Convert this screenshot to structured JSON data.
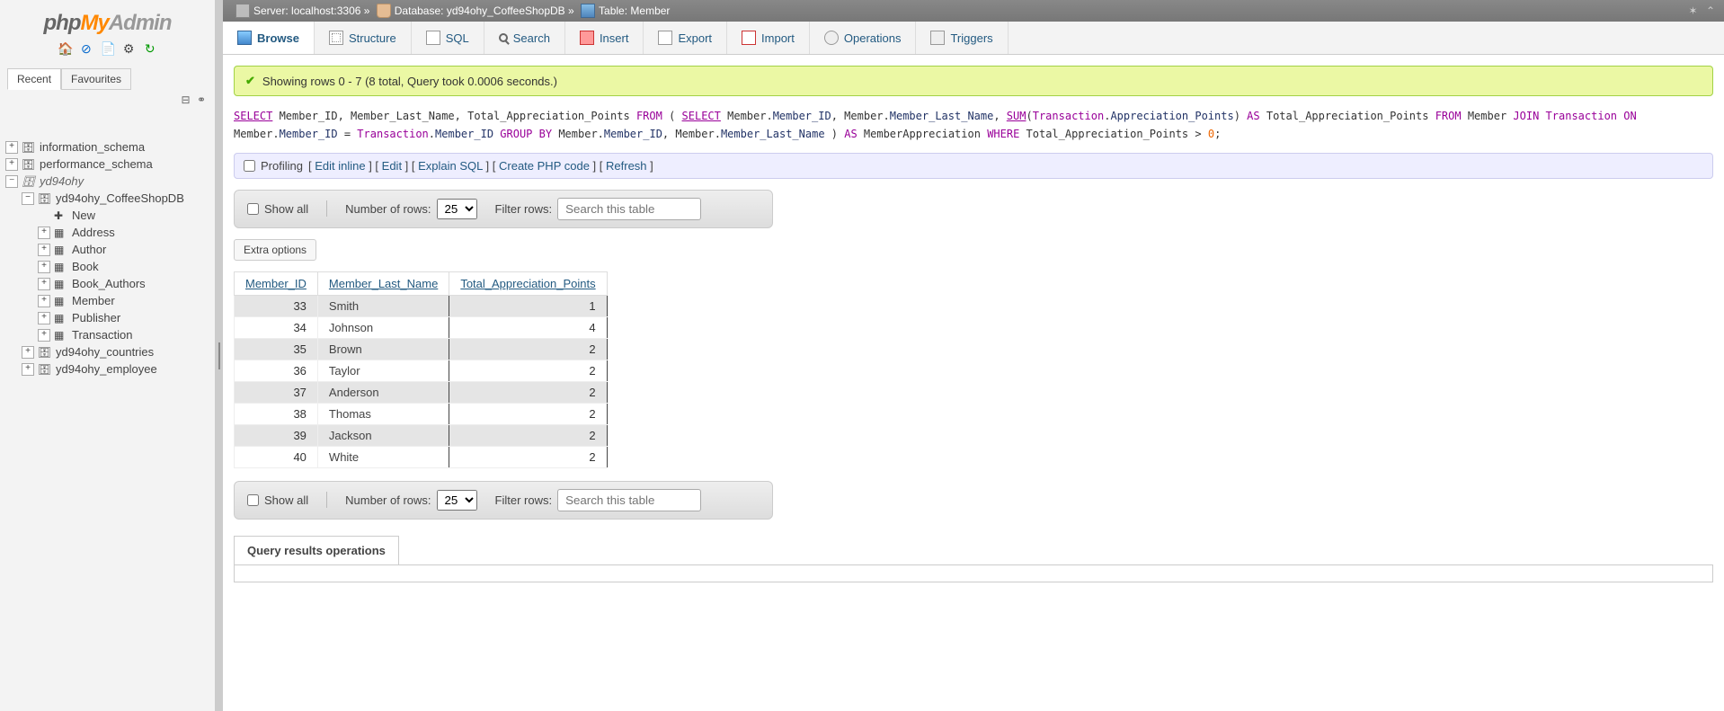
{
  "logo": {
    "p1": "php",
    "p2": "My",
    "p3": "Admin"
  },
  "sidebar": {
    "tabs": [
      "Recent",
      "Favourites"
    ],
    "activeTab": 0,
    "nodes": [
      {
        "label": "information_schema",
        "indent": 0,
        "exp": "+",
        "icon": "db"
      },
      {
        "label": "performance_schema",
        "indent": 0,
        "exp": "+",
        "icon": "db"
      },
      {
        "label": "yd94ohy",
        "indent": 0,
        "exp": "−",
        "icon": "db",
        "italic": true
      },
      {
        "label": "yd94ohy_CoffeeShopDB",
        "indent": 1,
        "exp": "−",
        "icon": "db"
      },
      {
        "label": "New",
        "indent": 2,
        "exp": "",
        "icon": "new"
      },
      {
        "label": "Address",
        "indent": 2,
        "exp": "+",
        "icon": "tbl"
      },
      {
        "label": "Author",
        "indent": 2,
        "exp": "+",
        "icon": "tbl"
      },
      {
        "label": "Book",
        "indent": 2,
        "exp": "+",
        "icon": "tbl"
      },
      {
        "label": "Book_Authors",
        "indent": 2,
        "exp": "+",
        "icon": "tbl"
      },
      {
        "label": "Member",
        "indent": 2,
        "exp": "+",
        "icon": "tbl"
      },
      {
        "label": "Publisher",
        "indent": 2,
        "exp": "+",
        "icon": "tbl"
      },
      {
        "label": "Transaction",
        "indent": 2,
        "exp": "+",
        "icon": "tbl"
      },
      {
        "label": "yd94ohy_countries",
        "indent": 1,
        "exp": "+",
        "icon": "db"
      },
      {
        "label": "yd94ohy_employee",
        "indent": 1,
        "exp": "+",
        "icon": "db"
      }
    ]
  },
  "breadcrumb": {
    "server_lbl": "Server:",
    "server": "localhost:3306",
    "db_lbl": "Database:",
    "db": "yd94ohy_CoffeeShopDB",
    "tbl_lbl": "Table:",
    "tbl": "Member"
  },
  "topmenu": [
    {
      "label": "Browse",
      "icon": "i-table",
      "active": true
    },
    {
      "label": "Structure",
      "icon": "i-struct"
    },
    {
      "label": "SQL",
      "icon": "i-sql"
    },
    {
      "label": "Search",
      "icon": "i-search"
    },
    {
      "label": "Insert",
      "icon": "i-insert"
    },
    {
      "label": "Export",
      "icon": "i-export"
    },
    {
      "label": "Import",
      "icon": "i-import"
    },
    {
      "label": "Operations",
      "icon": "i-ops"
    },
    {
      "label": "Triggers",
      "icon": "i-trig"
    }
  ],
  "success": "Showing rows 0 - 7 (8 total, Query took 0.0006 seconds.)",
  "sql_tokens": [
    {
      "t": "SELECT",
      "c": "kwu"
    },
    {
      "t": " Member_ID, Member_Last_Name, Total_Appreciation_Points "
    },
    {
      "t": "FROM",
      "c": "kw"
    },
    {
      "t": " ( "
    },
    {
      "t": "SELECT",
      "c": "kwu"
    },
    {
      "t": " Member."
    },
    {
      "t": "Member_ID",
      "c": "fld"
    },
    {
      "t": ", Member."
    },
    {
      "t": "Member_Last_Name",
      "c": "fld"
    },
    {
      "t": ", "
    },
    {
      "t": "SUM",
      "c": "kwu"
    },
    {
      "t": "("
    },
    {
      "t": "Transaction",
      "c": "kw"
    },
    {
      "t": "."
    },
    {
      "t": "Appreciation_Points",
      "c": "fld"
    },
    {
      "t": ") "
    },
    {
      "t": "AS",
      "c": "kw"
    },
    {
      "t": " Total_Appreciation_Points "
    },
    {
      "t": "FROM",
      "c": "kw"
    },
    {
      "t": " Member "
    },
    {
      "t": "JOIN",
      "c": "kw"
    },
    {
      "t": " "
    },
    {
      "t": "Transaction",
      "c": "kw"
    },
    {
      "t": " "
    },
    {
      "t": "ON",
      "c": "kw"
    },
    {
      "t": " Member."
    },
    {
      "t": "Member_ID",
      "c": "fld"
    },
    {
      "t": " = "
    },
    {
      "t": "Transaction",
      "c": "kw"
    },
    {
      "t": "."
    },
    {
      "t": "Member_ID",
      "c": "fld"
    },
    {
      "t": " "
    },
    {
      "t": "GROUP",
      "c": "kw"
    },
    {
      "t": " "
    },
    {
      "t": "BY",
      "c": "kw"
    },
    {
      "t": " Member."
    },
    {
      "t": "Member_ID",
      "c": "fld"
    },
    {
      "t": ", Member."
    },
    {
      "t": "Member_Last_Name",
      "c": "fld"
    },
    {
      "t": " ) "
    },
    {
      "t": "AS",
      "c": "kw"
    },
    {
      "t": " MemberAppreciation "
    },
    {
      "t": "WHERE",
      "c": "kw"
    },
    {
      "t": " Total_Appreciation_Points > "
    },
    {
      "t": "0",
      "c": "num"
    },
    {
      "t": ";"
    }
  ],
  "actions": {
    "profiling": "Profiling",
    "links": [
      "Edit inline",
      "Edit",
      "Explain SQL",
      "Create PHP code",
      "Refresh"
    ]
  },
  "filter": {
    "show_all": "Show all",
    "num_rows_lbl": "Number of rows:",
    "num_rows_val": "25",
    "filter_lbl": "Filter rows:",
    "filter_ph": "Search this table"
  },
  "extra_btn": "Extra options",
  "table": {
    "headers": [
      "Member_ID",
      "Member_Last_Name",
      "Total_Appreciation_Points"
    ],
    "rows": [
      [
        "33",
        "Smith",
        "1"
      ],
      [
        "34",
        "Johnson",
        "4"
      ],
      [
        "35",
        "Brown",
        "2"
      ],
      [
        "36",
        "Taylor",
        "2"
      ],
      [
        "37",
        "Anderson",
        "2"
      ],
      [
        "38",
        "Thomas",
        "2"
      ],
      [
        "39",
        "Jackson",
        "2"
      ],
      [
        "40",
        "White",
        "2"
      ]
    ]
  },
  "qr_ops": "Query results operations"
}
